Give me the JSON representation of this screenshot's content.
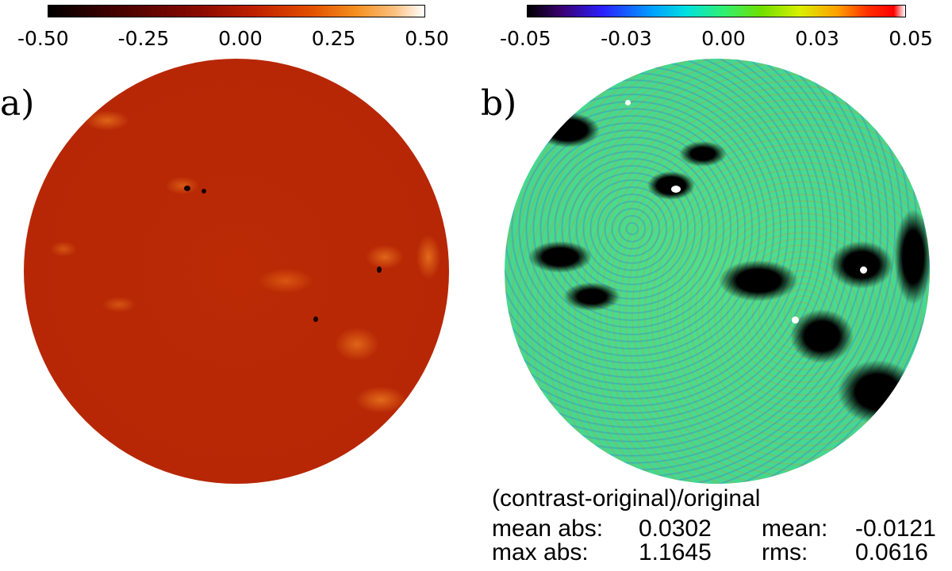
{
  "panel_a": {
    "label": "a)",
    "colorbar": {
      "ticks": [
        "-0.50",
        "-0.25",
        "0.00",
        "0.25",
        "0.50"
      ],
      "range": [
        -0.5,
        0.5
      ],
      "colormap": "red-temperature"
    }
  },
  "panel_b": {
    "label": "b)",
    "colorbar": {
      "ticks": [
        "-0.05",
        "-0.03",
        "0.00",
        "0.03",
        "0.05"
      ],
      "range": [
        -0.05,
        0.05
      ],
      "colormap": "rainbow"
    },
    "caption": "(contrast-original)/original",
    "stats": [
      {
        "label": "mean abs:",
        "value": "0.0302"
      },
      {
        "label": "mean:",
        "value": "-0.0121"
      },
      {
        "label": "max abs:",
        "value": "1.1645"
      },
      {
        "label": "rms:",
        "value": "0.0616"
      }
    ]
  },
  "colors": {
    "disk_a_base": "#b72705",
    "disk_b_base": "#45d890",
    "background": "#ffffff"
  }
}
